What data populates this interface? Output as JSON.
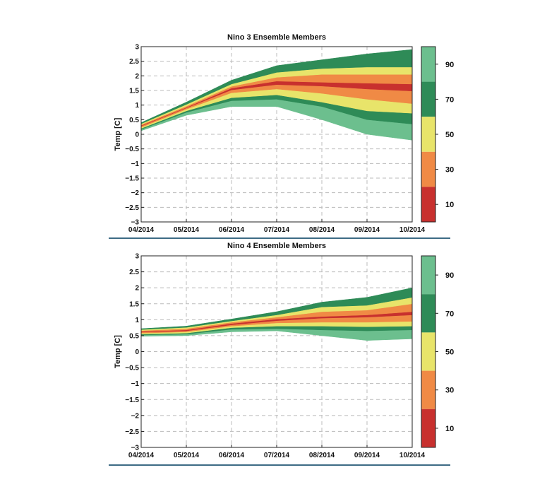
{
  "chart_data": [
    {
      "type": "area",
      "title": "Nino 3 Ensemble Members",
      "ylabel": "Temp [C]",
      "xlabel": "",
      "ylim": [
        -3,
        3
      ],
      "yticks": [
        3,
        2.5,
        2,
        1.5,
        1,
        0.5,
        0,
        -0.5,
        -1,
        -1.5,
        -2,
        -2.5,
        -3
      ],
      "ytick_labels": [
        "3",
        "2.5",
        "2",
        "1.5",
        "1",
        "0.5",
        "0",
        "−0.5",
        "−1",
        "−1.5",
        "−2",
        "−2.5",
        "−3"
      ],
      "categories": [
        "04/2014",
        "05/2014",
        "06/2014",
        "07/2014",
        "08/2014",
        "09/2014",
        "10/2014"
      ],
      "grid": true,
      "percentile_bounds": [
        [
          0.12,
          0.65,
          0.95,
          0.95,
          0.5,
          0.0,
          -0.2
        ],
        [
          0.17,
          0.75,
          1.15,
          1.2,
          0.95,
          0.5,
          0.35
        ],
        [
          0.2,
          0.8,
          1.25,
          1.35,
          1.1,
          0.8,
          0.72
        ],
        [
          0.24,
          0.86,
          1.42,
          1.55,
          1.4,
          1.2,
          1.05
        ],
        [
          0.28,
          0.9,
          1.52,
          1.7,
          1.65,
          1.55,
          1.48
        ],
        [
          0.3,
          0.92,
          1.58,
          1.82,
          1.78,
          1.75,
          1.72
        ],
        [
          0.33,
          0.96,
          1.64,
          1.95,
          2.05,
          2.05,
          2.05
        ],
        [
          0.36,
          1.02,
          1.72,
          2.12,
          2.25,
          2.3,
          2.3
        ],
        [
          0.4,
          1.1,
          1.85,
          2.35,
          2.55,
          2.75,
          2.9
        ]
      ],
      "band_colors": [
        "#6cbf8e",
        "#2e8b57",
        "#e8e46a",
        "#f08a45",
        "#c8302e",
        "#f08a45",
        "#e8e46a",
        "#2e8b57"
      ],
      "colorbar": {
        "labels": [
          "90",
          "70",
          "50",
          "30",
          "10"
        ],
        "colors": [
          "#6cbf8e",
          "#2e8b57",
          "#e8e46a",
          "#f08a45",
          "#c8302e"
        ]
      }
    },
    {
      "type": "area",
      "title": "Nino 4 Ensemble Members",
      "ylabel": "Temp [C]",
      "xlabel": "",
      "ylim": [
        -3,
        3
      ],
      "yticks": [
        3,
        2.5,
        2,
        1.5,
        1,
        0.5,
        0,
        -0.5,
        -1,
        -1.5,
        -2,
        -2.5,
        -3
      ],
      "ytick_labels": [
        "3",
        "2.5",
        "2",
        "1.5",
        "1",
        "0.5",
        "0",
        "−0.5",
        "−1",
        "−1.5",
        "−2",
        "−2.5",
        "−3"
      ],
      "categories": [
        "04/2014",
        "05/2014",
        "06/2014",
        "07/2014",
        "08/2014",
        "09/2014",
        "10/2014"
      ],
      "grid": true,
      "percentile_bounds": [
        [
          0.48,
          0.5,
          0.62,
          0.65,
          0.5,
          0.35,
          0.4
        ],
        [
          0.52,
          0.55,
          0.7,
          0.72,
          0.68,
          0.65,
          0.68
        ],
        [
          0.55,
          0.58,
          0.75,
          0.8,
          0.8,
          0.78,
          0.8
        ],
        [
          0.58,
          0.62,
          0.8,
          0.9,
          0.92,
          0.92,
          0.95
        ],
        [
          0.61,
          0.65,
          0.84,
          0.97,
          1.05,
          1.08,
          1.15
        ],
        [
          0.63,
          0.68,
          0.88,
          1.02,
          1.1,
          1.15,
          1.25
        ],
        [
          0.66,
          0.72,
          0.92,
          1.08,
          1.25,
          1.3,
          1.5
        ],
        [
          0.69,
          0.76,
          0.96,
          1.15,
          1.4,
          1.45,
          1.7
        ],
        [
          0.72,
          0.8,
          1.02,
          1.25,
          1.55,
          1.7,
          2.0
        ]
      ],
      "band_colors": [
        "#6cbf8e",
        "#2e8b57",
        "#e8e46a",
        "#f08a45",
        "#c8302e",
        "#f08a45",
        "#e8e46a",
        "#2e8b57"
      ],
      "colorbar": {
        "labels": [
          "90",
          "70",
          "50",
          "30",
          "10"
        ],
        "colors": [
          "#6cbf8e",
          "#2e8b57",
          "#e8e46a",
          "#f08a45",
          "#c8302e"
        ]
      }
    }
  ]
}
